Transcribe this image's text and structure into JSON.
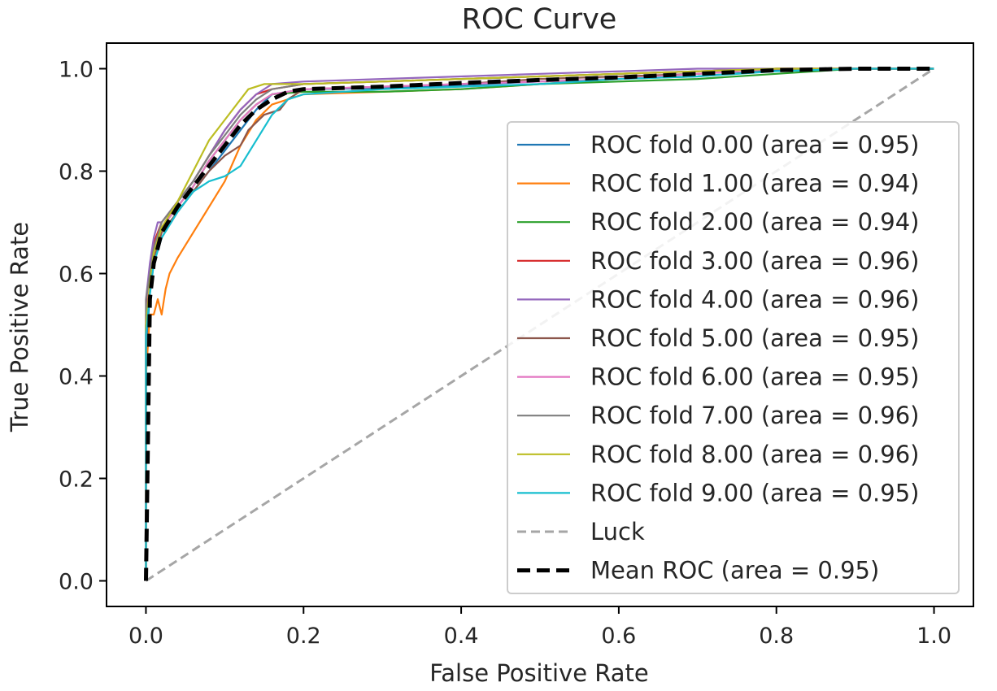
{
  "chart_data": {
    "type": "line",
    "title": "ROC Curve",
    "xlabel": "False Positive Rate",
    "ylabel": "True Positive Rate",
    "xlim": [
      -0.05,
      1.05
    ],
    "ylim": [
      -0.05,
      1.05
    ],
    "x_ticks": [
      "0.0",
      "0.2",
      "0.4",
      "0.6",
      "0.8",
      "1.0"
    ],
    "y_ticks": [
      "0.0",
      "0.2",
      "0.4",
      "0.6",
      "0.8",
      "1.0"
    ],
    "grid": false,
    "legend_position": "lower-right",
    "series": [
      {
        "name": "ROC fold 0.00 (area = 0.95)",
        "color": "#1f77b4",
        "style": "solid",
        "x": [
          0.0,
          0.0,
          0.005,
          0.01,
          0.02,
          0.04,
          0.06,
          0.08,
          0.1,
          0.12,
          0.14,
          0.16,
          0.2,
          0.3,
          0.4,
          0.5,
          0.6,
          0.7,
          0.8,
          0.9,
          1.0
        ],
        "y": [
          0.0,
          0.45,
          0.56,
          0.62,
          0.67,
          0.72,
          0.76,
          0.8,
          0.84,
          0.88,
          0.92,
          0.95,
          0.96,
          0.962,
          0.968,
          0.975,
          0.98,
          0.985,
          0.997,
          1.0,
          1.0
        ]
      },
      {
        "name": "ROC fold 1.00 (area = 0.94)",
        "color": "#ff7f0e",
        "style": "solid",
        "x": [
          0.0,
          0.0,
          0.005,
          0.01,
          0.015,
          0.02,
          0.025,
          0.03,
          0.04,
          0.06,
          0.08,
          0.1,
          0.12,
          0.14,
          0.16,
          0.2,
          0.3,
          0.4,
          0.5,
          0.6,
          0.7,
          0.8,
          0.9,
          1.0
        ],
        "y": [
          0.0,
          0.4,
          0.52,
          0.52,
          0.55,
          0.52,
          0.57,
          0.6,
          0.63,
          0.68,
          0.73,
          0.78,
          0.85,
          0.9,
          0.93,
          0.95,
          0.955,
          0.96,
          0.97,
          0.98,
          0.99,
          1.0,
          1.0,
          1.0
        ]
      },
      {
        "name": "ROC fold 2.00 (area = 0.94)",
        "color": "#2ca02c",
        "style": "solid",
        "x": [
          0.0,
          0.0,
          0.005,
          0.01,
          0.02,
          0.04,
          0.06,
          0.08,
          0.1,
          0.12,
          0.14,
          0.16,
          0.2,
          0.3,
          0.4,
          0.5,
          0.6,
          0.7,
          0.8,
          0.9,
          1.0
        ],
        "y": [
          0.0,
          0.5,
          0.58,
          0.63,
          0.69,
          0.73,
          0.77,
          0.82,
          0.86,
          0.9,
          0.93,
          0.95,
          0.955,
          0.955,
          0.96,
          0.97,
          0.975,
          0.98,
          0.99,
          1.0,
          1.0
        ]
      },
      {
        "name": "ROC fold 3.00 (area = 0.96)",
        "color": "#d62728",
        "style": "solid",
        "x": [
          0.0,
          0.0,
          0.005,
          0.01,
          0.02,
          0.04,
          0.06,
          0.08,
          0.1,
          0.12,
          0.14,
          0.16,
          0.2,
          0.3,
          0.4,
          0.5,
          0.6,
          0.7,
          0.8,
          0.9,
          1.0
        ],
        "y": [
          0.0,
          0.52,
          0.6,
          0.66,
          0.7,
          0.74,
          0.78,
          0.83,
          0.88,
          0.92,
          0.95,
          0.96,
          0.97,
          0.975,
          0.98,
          0.985,
          0.99,
          0.995,
          1.0,
          1.0,
          1.0
        ]
      },
      {
        "name": "ROC fold 4.00 (area = 0.96)",
        "color": "#9467bd",
        "style": "solid",
        "x": [
          0.0,
          0.0,
          0.005,
          0.01,
          0.015,
          0.02,
          0.04,
          0.06,
          0.08,
          0.1,
          0.12,
          0.14,
          0.16,
          0.2,
          0.3,
          0.4,
          0.5,
          0.6,
          0.7,
          0.8,
          0.9,
          1.0
        ],
        "y": [
          0.0,
          0.55,
          0.62,
          0.67,
          0.7,
          0.7,
          0.74,
          0.78,
          0.83,
          0.88,
          0.92,
          0.95,
          0.97,
          0.975,
          0.98,
          0.985,
          0.99,
          0.995,
          1.0,
          1.0,
          1.0,
          1.0
        ]
      },
      {
        "name": "ROC fold 5.00 (area = 0.95)",
        "color": "#8c564b",
        "style": "solid",
        "x": [
          0.0,
          0.0,
          0.005,
          0.01,
          0.02,
          0.04,
          0.06,
          0.08,
          0.1,
          0.12,
          0.13,
          0.15,
          0.17,
          0.18,
          0.2,
          0.3,
          0.4,
          0.5,
          0.6,
          0.7,
          0.8,
          0.9,
          1.0
        ],
        "y": [
          0.0,
          0.5,
          0.58,
          0.63,
          0.68,
          0.72,
          0.76,
          0.8,
          0.83,
          0.85,
          0.88,
          0.91,
          0.92,
          0.94,
          0.96,
          0.965,
          0.97,
          0.98,
          0.985,
          0.99,
          1.0,
          1.0,
          1.0
        ]
      },
      {
        "name": "ROC fold 6.00 (area = 0.95)",
        "color": "#e377c2",
        "style": "solid",
        "x": [
          0.0,
          0.0,
          0.005,
          0.01,
          0.02,
          0.04,
          0.06,
          0.08,
          0.1,
          0.12,
          0.14,
          0.16,
          0.2,
          0.3,
          0.4,
          0.5,
          0.6,
          0.7,
          0.8,
          0.9,
          1.0
        ],
        "y": [
          0.0,
          0.5,
          0.59,
          0.64,
          0.69,
          0.73,
          0.77,
          0.82,
          0.86,
          0.9,
          0.93,
          0.95,
          0.96,
          0.965,
          0.97,
          0.975,
          0.98,
          0.99,
          1.0,
          1.0,
          1.0
        ]
      },
      {
        "name": "ROC fold 7.00 (area = 0.96)",
        "color": "#7f7f7f",
        "style": "solid",
        "x": [
          0.0,
          0.0,
          0.005,
          0.01,
          0.02,
          0.04,
          0.06,
          0.08,
          0.1,
          0.12,
          0.14,
          0.16,
          0.2,
          0.3,
          0.4,
          0.5,
          0.6,
          0.7,
          0.8,
          0.9,
          1.0
        ],
        "y": [
          0.0,
          0.55,
          0.6,
          0.65,
          0.7,
          0.74,
          0.78,
          0.83,
          0.87,
          0.91,
          0.94,
          0.96,
          0.97,
          0.975,
          0.98,
          0.985,
          0.99,
          0.995,
          1.0,
          1.0,
          1.0
        ]
      },
      {
        "name": "ROC fold 8.00 (area = 0.96)",
        "color": "#bcbd22",
        "style": "solid",
        "x": [
          0.0,
          0.0,
          0.005,
          0.01,
          0.02,
          0.04,
          0.06,
          0.08,
          0.1,
          0.12,
          0.13,
          0.15,
          0.17,
          0.2,
          0.3,
          0.4,
          0.5,
          0.6,
          0.7,
          0.8,
          0.9,
          1.0
        ],
        "y": [
          0.0,
          0.5,
          0.58,
          0.64,
          0.69,
          0.74,
          0.8,
          0.86,
          0.9,
          0.94,
          0.96,
          0.97,
          0.97,
          0.97,
          0.975,
          0.98,
          0.985,
          0.99,
          0.995,
          1.0,
          1.0,
          1.0
        ]
      },
      {
        "name": "ROC fold 9.00 (area = 0.95)",
        "color": "#17becf",
        "style": "solid",
        "x": [
          0.0,
          0.0,
          0.005,
          0.01,
          0.02,
          0.04,
          0.06,
          0.08,
          0.1,
          0.11,
          0.12,
          0.14,
          0.16,
          0.18,
          0.2,
          0.3,
          0.4,
          0.5,
          0.6,
          0.7,
          0.8,
          0.9,
          1.0
        ],
        "y": [
          0.0,
          0.48,
          0.56,
          0.62,
          0.67,
          0.72,
          0.76,
          0.78,
          0.79,
          0.8,
          0.81,
          0.86,
          0.91,
          0.94,
          0.95,
          0.96,
          0.965,
          0.97,
          0.98,
          0.985,
          0.995,
          1.0,
          1.0
        ]
      },
      {
        "name": "Luck",
        "color": "#a6a6a6",
        "style": "dashed",
        "x": [
          0.0,
          1.0
        ],
        "y": [
          0.0,
          1.0
        ]
      },
      {
        "name": "Mean ROC (area = 0.95)",
        "color": "#000000",
        "style": "dashed-bold",
        "x": [
          0.0,
          0.005,
          0.01,
          0.02,
          0.04,
          0.06,
          0.08,
          0.1,
          0.12,
          0.14,
          0.16,
          0.18,
          0.2,
          0.3,
          0.4,
          0.5,
          0.6,
          0.7,
          0.8,
          0.9,
          1.0
        ],
        "y": [
          0.0,
          0.55,
          0.62,
          0.68,
          0.73,
          0.77,
          0.81,
          0.85,
          0.89,
          0.92,
          0.94,
          0.955,
          0.96,
          0.965,
          0.972,
          0.978,
          0.983,
          0.99,
          0.997,
          1.0,
          1.0
        ]
      }
    ]
  }
}
